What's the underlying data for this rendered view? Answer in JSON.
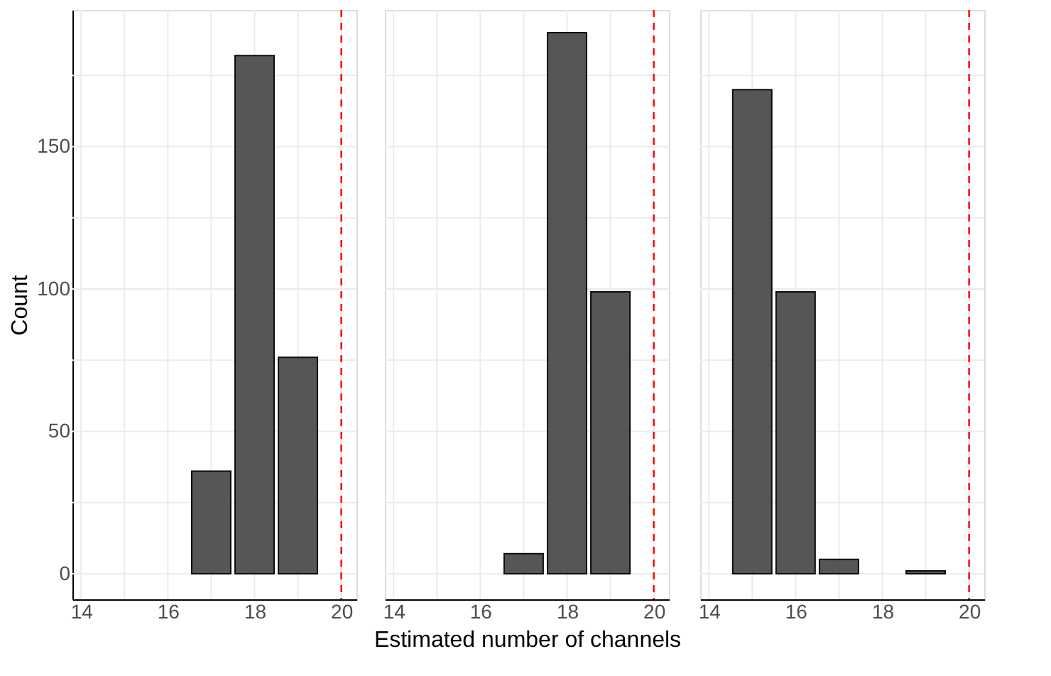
{
  "chart_data": [
    {
      "type": "bar",
      "ylabel": "Count",
      "x": [
        17,
        18,
        19
      ],
      "series": [
        {
          "color": "#4d4d4d",
          "values": [
            36,
            182,
            76
          ]
        }
      ],
      "xlim": [
        13.8,
        20.35
      ],
      "ylim": [
        -9,
        198
      ],
      "xticks": [
        14,
        {
          "value": 15,
          "label": null
        },
        16,
        {
          "value": 17,
          "label": null
        },
        18,
        {
          "value": 19,
          "label": null
        },
        20
      ],
      "yticks": [
        0,
        {
          "value": 25,
          "label": null
        },
        50,
        {
          "value": 75,
          "label": null
        },
        100,
        {
          "value": 125,
          "label": null
        },
        150,
        {
          "value": 175,
          "label": null
        }
      ],
      "ref_lines": [
        {
          "axis": "x",
          "value": 20,
          "color": "#ff0000",
          "line_style": "dashed"
        }
      ],
      "grid": true
    },
    {
      "type": "bar",
      "xlabel": "Estimated number of channels",
      "x": [
        17,
        18,
        19
      ],
      "series": [
        {
          "color": "#4d4d4d",
          "values": [
            7,
            190,
            99
          ]
        }
      ],
      "xlim": [
        13.8,
        20.35
      ],
      "ylim": [
        -9,
        198
      ],
      "xticks": [
        14,
        {
          "value": 15,
          "label": null
        },
        16,
        {
          "value": 17,
          "label": null
        },
        18,
        {
          "value": 19,
          "label": null
        },
        20
      ],
      "yticks": [
        0,
        {
          "value": 25,
          "label": null
        },
        50,
        {
          "value": 75,
          "label": null
        },
        100,
        {
          "value": 125,
          "label": null
        },
        150,
        {
          "value": 175,
          "label": null
        }
      ],
      "ref_lines": [
        {
          "axis": "x",
          "value": 20,
          "color": "#ff0000",
          "line_style": "dashed"
        }
      ],
      "grid": true,
      "tick_labels": "x"
    },
    {
      "type": "bar",
      "x": [
        15,
        16,
        17,
        19
      ],
      "series": [
        {
          "color": "#4d4d4d",
          "values": [
            170,
            99,
            5,
            1
          ]
        }
      ],
      "xlim": [
        13.8,
        20.35
      ],
      "ylim": [
        -9,
        198
      ],
      "xticks": [
        14,
        {
          "value": 15,
          "label": null
        },
        16,
        {
          "value": 17,
          "label": null
        },
        18,
        {
          "value": 19,
          "label": null
        },
        20
      ],
      "yticks": [
        0,
        {
          "value": 25,
          "label": null
        },
        50,
        {
          "value": 75,
          "label": null
        },
        100,
        {
          "value": 125,
          "label": null
        },
        150,
        {
          "value": 175,
          "label": null
        }
      ],
      "ref_lines": [
        {
          "axis": "x",
          "value": 20,
          "color": "#ff0000",
          "line_style": "dashed"
        }
      ],
      "grid": true,
      "tick_labels": "x"
    }
  ]
}
